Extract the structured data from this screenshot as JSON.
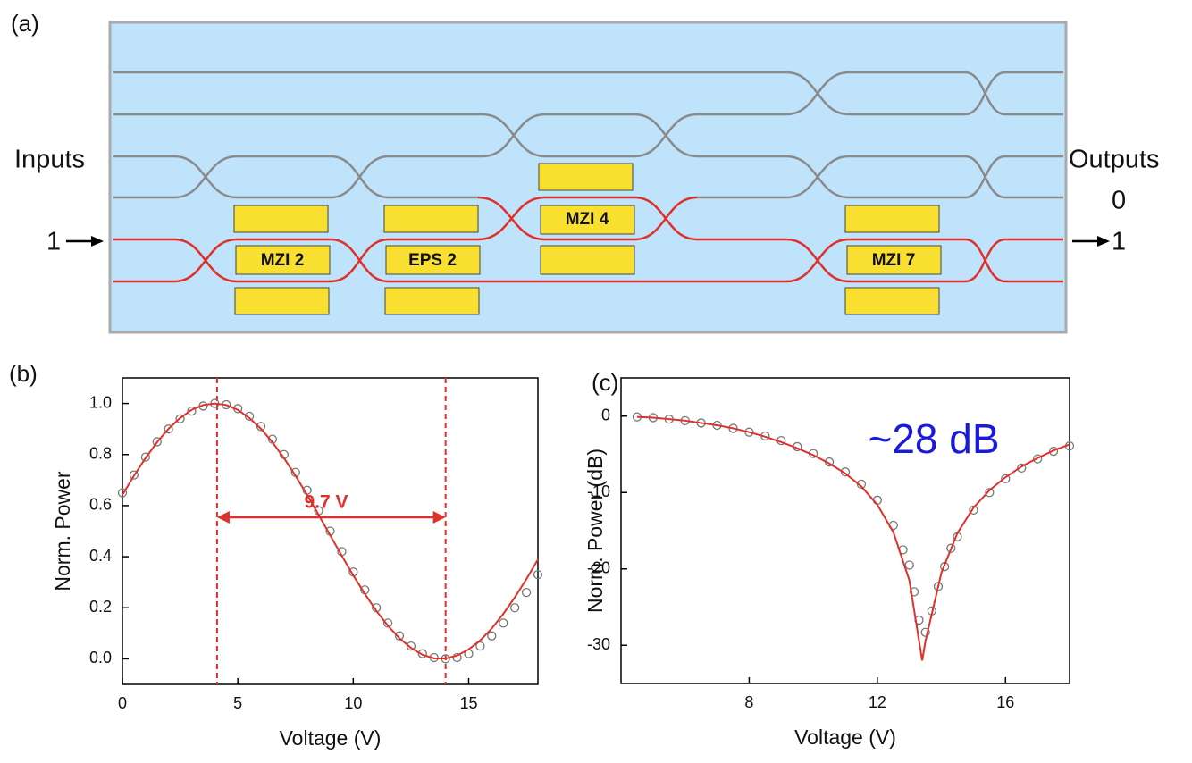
{
  "diagram": {
    "panel_label": "(a)",
    "inputs": "Inputs",
    "outputs": "Outputs",
    "input_port": "1",
    "output_ports": [
      "0",
      "1"
    ],
    "components": [
      "MZI 2",
      "EPS 2",
      "MZI 4",
      "MZI 7"
    ]
  },
  "chart_data": [
    {
      "type": "scatter",
      "panel_label": "(b)",
      "x_label": "Voltage (V)",
      "y_label": "Norm. Power",
      "xlim": [
        0,
        18
      ],
      "ylim": [
        -0.1,
        1.1
      ],
      "xticks": [
        0,
        5,
        10,
        15
      ],
      "yticks": [
        {
          "value": 0,
          "label": "0.0"
        },
        {
          "value": 0.2,
          "label": "0.2"
        },
        {
          "value": 0.4,
          "label": "0.4"
        },
        {
          "value": 0.6,
          "label": "0.6"
        },
        {
          "value": 0.8,
          "label": "0.8"
        },
        {
          "value": 1,
          "label": "1.0"
        }
      ],
      "vlines": [
        4.1,
        14.0
      ],
      "annotation": "9.7 V",
      "annotation_color": "#e0302a",
      "series": [
        {
          "type": "scatter",
          "color": "#777777",
          "x": [
            0,
            0.5,
            1,
            1.5,
            2,
            2.5,
            3,
            3.5,
            4,
            4.5,
            5,
            5.5,
            6,
            6.5,
            7,
            7.5,
            8,
            8.5,
            9,
            9.5,
            10,
            10.5,
            11,
            11.5,
            12,
            12.5,
            13,
            13.5,
            14,
            14.5,
            15,
            15.5,
            16,
            16.5,
            17,
            17.5,
            18
          ],
          "values": [
            0.65,
            0.72,
            0.79,
            0.85,
            0.9,
            0.94,
            0.97,
            0.99,
            1.0,
            0.995,
            0.98,
            0.95,
            0.91,
            0.86,
            0.8,
            0.73,
            0.66,
            0.58,
            0.5,
            0.42,
            0.34,
            0.27,
            0.2,
            0.14,
            0.09,
            0.05,
            0.02,
            0.005,
            0.0,
            0.005,
            0.02,
            0.05,
            0.09,
            0.14,
            0.2,
            0.26,
            0.33
          ]
        },
        {
          "type": "line",
          "color": "#e0302a",
          "x": [
            0,
            0.5,
            1,
            1.5,
            2,
            2.5,
            3,
            3.5,
            4,
            4.5,
            5,
            5.5,
            6,
            6.5,
            7,
            7.5,
            8,
            8.5,
            9,
            9.5,
            10,
            10.5,
            11,
            11.5,
            12,
            12.5,
            13,
            13.5,
            14,
            14.5,
            15,
            15.5,
            16,
            16.5,
            17,
            17.5,
            18
          ],
          "values": [
            0.642,
            0.717,
            0.786,
            0.848,
            0.901,
            0.943,
            0.975,
            0.994,
            1.0,
            0.994,
            0.975,
            0.943,
            0.901,
            0.848,
            0.786,
            0.717,
            0.642,
            0.564,
            0.484,
            0.404,
            0.327,
            0.255,
            0.188,
            0.13,
            0.081,
            0.043,
            0.016,
            0.002,
            0.001,
            0.013,
            0.037,
            0.072,
            0.119,
            0.176,
            0.241,
            0.312,
            0.389
          ]
        }
      ]
    },
    {
      "type": "scatter",
      "panel_label": "(c)",
      "x_label": "Voltage (V)",
      "y_label": "Norm. Power (dB)",
      "xlim": [
        4,
        18
      ],
      "ylim": [
        -35,
        5
      ],
      "xticks": [
        8,
        12,
        16
      ],
      "yticks": [
        0,
        -10,
        -20,
        -30
      ],
      "annotation": "~28 dB",
      "annotation_color": "#1a1adc",
      "series": [
        {
          "type": "scatter",
          "color": "#777777",
          "x": [
            4.5,
            5,
            5.5,
            6,
            6.5,
            7,
            7.5,
            8,
            8.5,
            9,
            9.5,
            10,
            10.5,
            11,
            11.5,
            12,
            12.5,
            12.8,
            13.0,
            13.15,
            13.3,
            13.5,
            13.7,
            13.9,
            14.1,
            14.3,
            14.5,
            15,
            15.5,
            16,
            16.5,
            17,
            17.5,
            18
          ],
          "values": [
            -0.1,
            -0.2,
            -0.4,
            -0.6,
            -0.9,
            -1.2,
            -1.6,
            -2.1,
            -2.6,
            -3.2,
            -4.0,
            -4.9,
            -6.0,
            -7.3,
            -8.9,
            -11.0,
            -14.3,
            -17.5,
            -19.5,
            -23.0,
            -26.7,
            -28.3,
            -25.5,
            -22.3,
            -19.7,
            -17.3,
            -15.8,
            -12.3,
            -10.0,
            -8.2,
            -6.8,
            -5.6,
            -4.6,
            -3.9
          ]
        },
        {
          "type": "line",
          "color": "#e0302a",
          "x": [
            4.5,
            5,
            5.5,
            6,
            6.5,
            7,
            7.5,
            8,
            8.5,
            9,
            9.5,
            10,
            10.5,
            11,
            11.5,
            12,
            12.5,
            13,
            13.4,
            13.5,
            14,
            14.5,
            15,
            15.5,
            16,
            16.5,
            17,
            17.5,
            18
          ],
          "values": [
            -0.1,
            -0.2,
            -0.4,
            -0.6,
            -0.9,
            -1.2,
            -1.6,
            -2.1,
            -2.7,
            -3.4,
            -4.2,
            -5.1,
            -6.2,
            -7.5,
            -9.2,
            -11.6,
            -15.2,
            -21.5,
            -32,
            -29.5,
            -20.5,
            -15.3,
            -12,
            -9.7,
            -8,
            -6.6,
            -5.5,
            -4.5,
            -3.7
          ]
        }
      ]
    }
  ]
}
